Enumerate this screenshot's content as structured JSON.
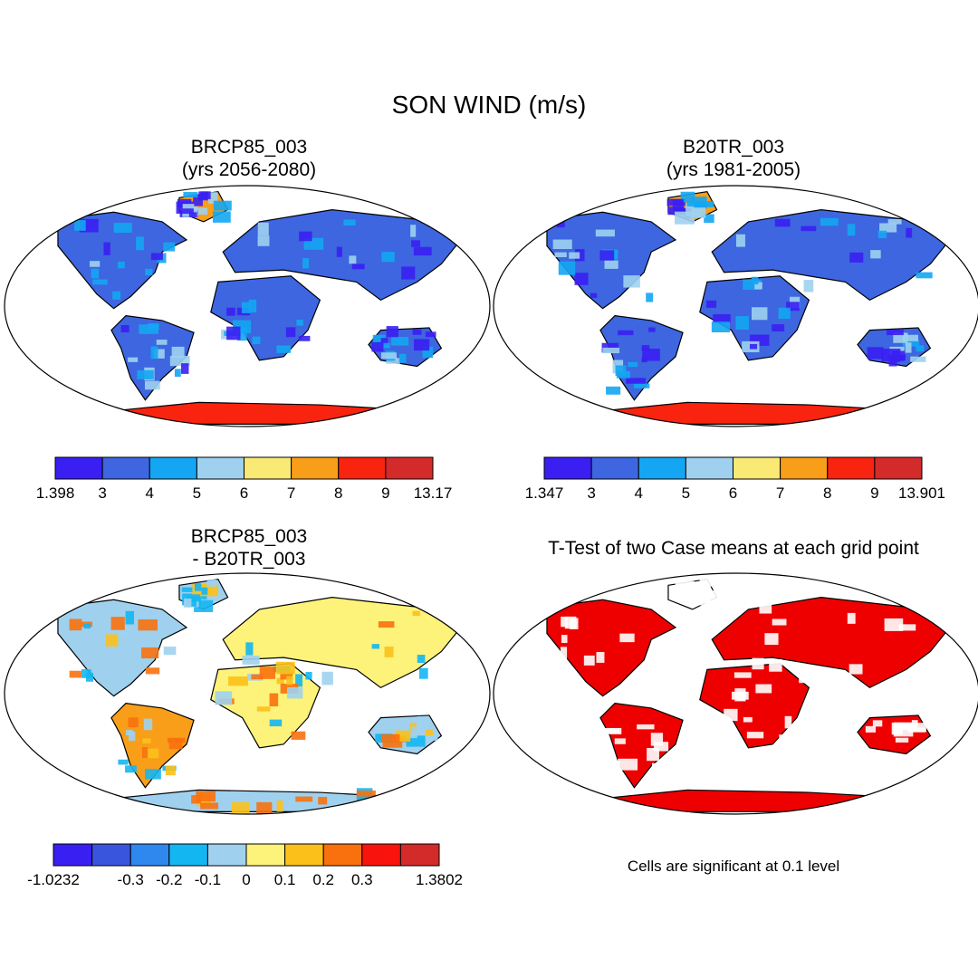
{
  "title": "SON WIND (m/s)",
  "panels": [
    {
      "id": "rcp85",
      "title_line1": "BRCP85_003",
      "title_line2": "(yrs 2056-2080)"
    },
    {
      "id": "b20tr",
      "title_line1": "B20TR_003",
      "title_line2": "(yrs 1981-2005)"
    },
    {
      "id": "diff",
      "title_line1": "BRCP85_003",
      "title_line2": "- B20TR_003"
    },
    {
      "id": "ttest",
      "title_line1": "T-Test of two Case means at each grid point",
      "note": "Cells are significant at 0.1 level"
    }
  ],
  "colorbars": [
    {
      "id": "cb-rcp85",
      "colors": [
        "#3a1ff2",
        "#3d66e0",
        "#14a6f2",
        "#9fd1ef",
        "#fbe975",
        "#f99e19",
        "#f8240f",
        "#d32a2a"
      ],
      "labels": [
        "1.398",
        "3",
        "4",
        "5",
        "6",
        "7",
        "8",
        "9",
        "13.17"
      ]
    },
    {
      "id": "cb-b20tr",
      "colors": [
        "#3a1ff2",
        "#3d66e0",
        "#14a6f2",
        "#9fd1ef",
        "#fbe975",
        "#f99e19",
        "#f8240f",
        "#d32a2a"
      ],
      "labels": [
        "1.347",
        "3",
        "4",
        "5",
        "6",
        "7",
        "8",
        "9",
        "13.901"
      ]
    },
    {
      "id": "cb-diff",
      "colors": [
        "#3a1ff2",
        "#3a55dd",
        "#2f88ee",
        "#14b6f2",
        "#9fd1ef",
        "#fdf27a",
        "#fbc11a",
        "#f8710e",
        "#f8140c",
        "#d32a2a"
      ],
      "labels": [
        "-1.0232",
        "",
        "-0.3",
        "-0.2",
        "-0.1",
        "0",
        "0.1",
        "0.2",
        "0.3",
        "",
        "1.3802"
      ]
    }
  ],
  "colors": {
    "land_rcp85": "#3d66e0",
    "land_b20tr": "#3d66e0",
    "land_diff": "#9fd1ef",
    "significant": "#ee0000",
    "antarctica_hot": "#f8240f"
  }
}
